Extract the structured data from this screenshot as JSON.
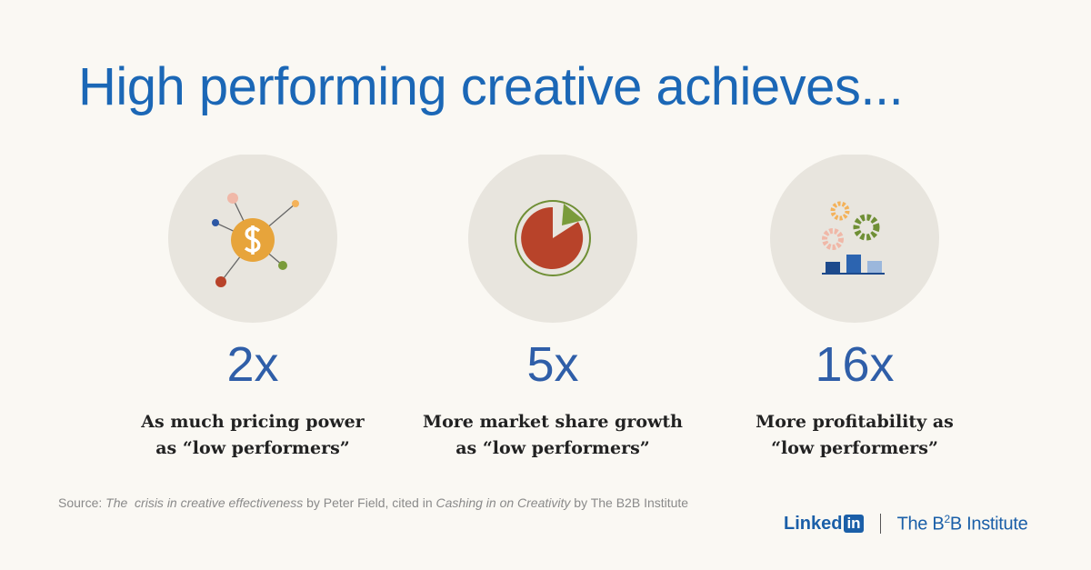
{
  "title": "High performing creative achieves...",
  "items": [
    {
      "stat": "2x",
      "lines": [
        "As much pricing power",
        "as “low performers”"
      ]
    },
    {
      "stat": "5x",
      "lines": [
        "More market share growth",
        "as “low performers”"
      ]
    },
    {
      "stat": "16x",
      "lines": [
        "More profitability as",
        "“low performers”"
      ]
    }
  ],
  "source": [
    "Source: ",
    "The  crisis in creative effectiveness",
    " by Peter Field, cited in ",
    "Cashing in on Creativity",
    " by The B2B Institute"
  ],
  "logos": {
    "linkedin": [
      "Linked",
      "in"
    ],
    "b2b": [
      "The B",
      "2",
      "B Institute"
    ]
  }
}
